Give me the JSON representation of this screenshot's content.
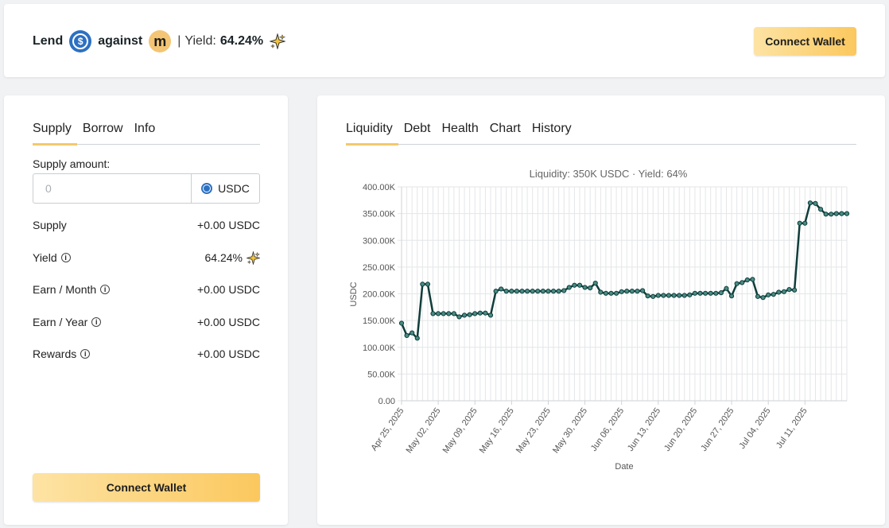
{
  "header": {
    "lend_label": "Lend",
    "against_label": "against",
    "m_symbol": "m",
    "usdc_symbol": "$",
    "separator": "|",
    "yield_label": "Yield:",
    "yield_value": "64.24%",
    "connect_wallet": "Connect Wallet"
  },
  "left_panel": {
    "tabs": [
      "Supply",
      "Borrow",
      "Info"
    ],
    "active_tab": "Supply",
    "supply_amount_label": "Supply amount:",
    "amount_placeholder": "0",
    "token": "USDC",
    "rows": [
      {
        "label": "Supply",
        "info": false,
        "value": "+0.00 USDC"
      },
      {
        "label": "Yield",
        "info": true,
        "value": "64.24%",
        "sparkle": true
      },
      {
        "label": "Earn / Month",
        "info": true,
        "value": "+0.00 USDC"
      },
      {
        "label": "Earn / Year",
        "info": true,
        "value": "+0.00 USDC"
      },
      {
        "label": "Rewards",
        "info": true,
        "value": "+0.00 USDC"
      }
    ],
    "info_glyph": "i",
    "connect_wallet": "Connect Wallet"
  },
  "right_panel": {
    "tabs": [
      "Liquidity",
      "Debt",
      "Health",
      "Chart",
      "History"
    ],
    "active_tab": "Liquidity"
  },
  "colors": {
    "accent": "#f4c96b",
    "button_from": "#fde3a4",
    "button_to": "#fbc85e",
    "line": "#0f3d3a",
    "marker": "#4a8a84",
    "usdc_blue": "#2d70c2",
    "m_coin": "#f3c574"
  },
  "chart_data": {
    "type": "line",
    "title": "Liquidity: 350K USDC · Yield: 64%",
    "xlabel": "Date",
    "ylabel": "USDC",
    "ylim": [
      0,
      400000
    ],
    "yticks": [
      "0.00",
      "50.00K",
      "100.00K",
      "150.00K",
      "200.00K",
      "250.00K",
      "300.00K",
      "350.00K",
      "400.00K"
    ],
    "x_tick_labels": [
      "Apr 25, 2025",
      "May 02, 2025",
      "May 09, 2025",
      "May 16, 2025",
      "May 23, 2025",
      "May 30, 2025",
      "Jun 06, 2025",
      "Jun 13, 2025",
      "Jun 20, 2025",
      "Jun 27, 2025",
      "Jul 04, 2025",
      "Jul 11, 2025"
    ],
    "x_start": "Apr 25, 2025",
    "x_end": "Jul 18, 2025",
    "grid": true,
    "series": [
      {
        "values": [
          145000,
          122000,
          127000,
          117000,
          218000,
          218000,
          163000,
          163000,
          163000,
          163000,
          163000,
          157000,
          160000,
          161000,
          163000,
          164000,
          164000,
          160000,
          205000,
          209000,
          205000,
          205000,
          205000,
          205000,
          205000,
          205000,
          205000,
          205000,
          205000,
          205000,
          205000,
          206000,
          212000,
          216000,
          216000,
          212000,
          211000,
          220000,
          203000,
          201000,
          201000,
          201000,
          204000,
          205000,
          205000,
          205000,
          206000,
          196000,
          195000,
          197000,
          197000,
          197000,
          197000,
          197000,
          197000,
          198000,
          201000,
          201000,
          201000,
          201000,
          201000,
          202000,
          210000,
          196000,
          219000,
          221000,
          226000,
          227000,
          195000,
          193000,
          198000,
          199000,
          203000,
          204000,
          208000,
          207000,
          332000,
          332000,
          370000,
          369000,
          358000,
          349000,
          349000,
          350000,
          350000,
          350000
        ]
      }
    ]
  }
}
